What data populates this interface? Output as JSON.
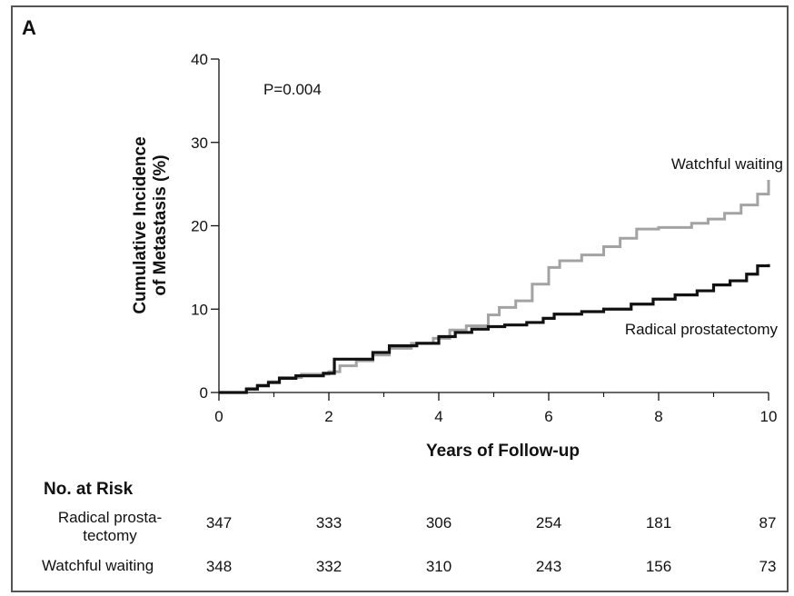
{
  "panel_label": "A",
  "colors": {
    "radical_prostatectomy": "#111111",
    "watchful_waiting": "#a3a3a3"
  },
  "chart_data": {
    "type": "line",
    "title": "",
    "xlabel": "Years of Follow-up",
    "ylabel": "Cumulative Incidence of Metastasis (%)",
    "ylabel_lines": [
      "Cumulative Incidence",
      "of Metastasis (%)"
    ],
    "xlim": [
      0,
      10
    ],
    "ylim": [
      0,
      40
    ],
    "xticks": [
      0,
      2,
      4,
      6,
      8,
      10
    ],
    "yticks": [
      0,
      10,
      20,
      30,
      40
    ],
    "grid": false,
    "annotation": "P=0.004",
    "step": true,
    "series": [
      {
        "name": "Watchful waiting",
        "x": [
          0,
          0.5,
          0.7,
          0.9,
          1.1,
          1.5,
          2.0,
          2.2,
          2.5,
          2.8,
          3.1,
          3.5,
          3.9,
          4.2,
          4.5,
          4.9,
          5.1,
          5.4,
          5.7,
          6.0,
          6.2,
          6.6,
          7.0,
          7.3,
          7.6,
          8.0,
          8.6,
          8.9,
          9.2,
          9.5,
          9.8,
          10.0
        ],
        "y": [
          0,
          0.5,
          0.9,
          1.3,
          1.8,
          2.2,
          2.5,
          3.2,
          3.8,
          4.5,
          5.3,
          5.9,
          6.5,
          7.5,
          8.0,
          9.3,
          10.2,
          11.0,
          13.0,
          15.0,
          15.8,
          16.5,
          17.5,
          18.5,
          19.6,
          19.8,
          20.3,
          20.8,
          21.5,
          22.5,
          23.8,
          25.5
        ]
      },
      {
        "name": "Radical prostatectomy",
        "x": [
          0,
          0.5,
          0.7,
          0.9,
          1.1,
          1.4,
          1.9,
          2.1,
          2.5,
          2.8,
          3.1,
          3.6,
          4.0,
          4.3,
          4.6,
          4.9,
          5.2,
          5.6,
          5.9,
          6.1,
          6.6,
          7.0,
          7.5,
          7.9,
          8.3,
          8.7,
          9.0,
          9.3,
          9.6,
          9.8,
          10.0
        ],
        "y": [
          0,
          0.4,
          0.8,
          1.2,
          1.7,
          2.0,
          2.3,
          4.0,
          4.0,
          4.8,
          5.6,
          5.9,
          6.7,
          7.2,
          7.6,
          7.9,
          8.1,
          8.4,
          8.9,
          9.4,
          9.7,
          10.0,
          10.6,
          11.2,
          11.7,
          12.2,
          12.9,
          13.4,
          14.2,
          15.2,
          15.4
        ]
      }
    ]
  },
  "risk_table": {
    "heading": "No. at Risk",
    "years": [
      0,
      2,
      4,
      6,
      8,
      10
    ],
    "rows": [
      {
        "label": "Radical prosta-\ntectomy",
        "values": [
          "347",
          "333",
          "306",
          "254",
          "181",
          "87"
        ]
      },
      {
        "label": "Watchful waiting",
        "values": [
          "348",
          "332",
          "310",
          "243",
          "156",
          "73"
        ]
      }
    ]
  }
}
